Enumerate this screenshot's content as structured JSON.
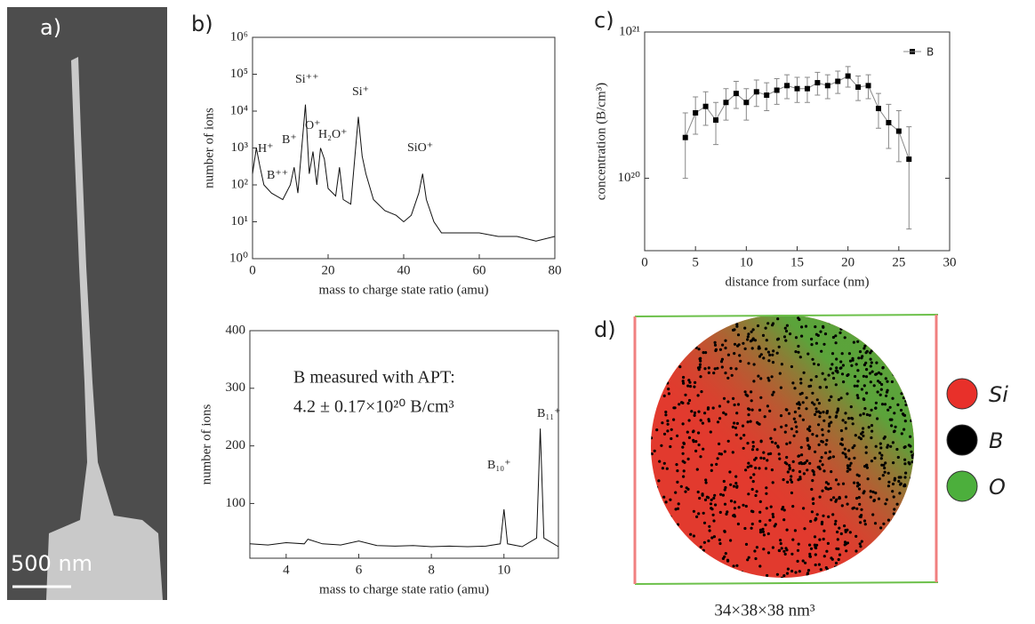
{
  "panel_labels": [
    "a)",
    "b)",
    "c)",
    "d)"
  ],
  "scale_bar": "500 nm",
  "atom_map": {
    "legend": [
      {
        "label": "Si",
        "color": "#e8302a"
      },
      {
        "label": "B",
        "color": "#000000"
      },
      {
        "label": "O",
        "color": "#4caf3c"
      }
    ],
    "caption": "34×38×38 nm³"
  },
  "chart_data": [
    {
      "type": "line",
      "ylog": true,
      "color": "#111111",
      "x_label": "mass to charge state ratio (amu)",
      "y_label": "number of ions",
      "annotations": [
        "H⁺",
        "B⁺",
        "B⁺⁺",
        "Si⁺⁺",
        "O⁺",
        "H₂O⁺",
        "Si⁺",
        "SiO⁺"
      ],
      "x": [
        0,
        1,
        2,
        3,
        5,
        8,
        10,
        11,
        12,
        14,
        15,
        16,
        17,
        18,
        19,
        20,
        22,
        23,
        24,
        26,
        28,
        29,
        30,
        32,
        35,
        38,
        40,
        42,
        44,
        45,
        46,
        48,
        50,
        55,
        60,
        65,
        70,
        75,
        80
      ],
      "values": [
        200,
        1000,
        300,
        100,
        60,
        40,
        100,
        300,
        60,
        15000,
        200,
        800,
        100,
        1000,
        500,
        80,
        50,
        300,
        40,
        30,
        7000,
        600,
        200,
        40,
        20,
        15,
        10,
        15,
        60,
        200,
        40,
        10,
        5,
        5,
        5,
        4,
        4,
        3,
        4
      ],
      "xlim": [
        0,
        80
      ],
      "xticks": [
        0,
        20,
        40,
        60,
        80
      ],
      "ylim": [
        1,
        1000000
      ],
      "yticks": [
        {
          "value": 1,
          "label": "10⁰"
        },
        {
          "value": 10,
          "label": "10¹"
        },
        {
          "value": 100,
          "label": "10²"
        },
        {
          "value": 1000,
          "label": "10³"
        },
        {
          "value": 10000,
          "label": "10⁴"
        },
        {
          "value": 100000,
          "label": "10⁵"
        },
        {
          "value": 1000000,
          "label": "10⁶"
        }
      ]
    },
    {
      "type": "line",
      "ylog": false,
      "color": "#111111",
      "x_label": "mass to charge state ratio (amu)",
      "y_label": "number of ions",
      "annotations": [
        "B measured  with APT:",
        "4.2 ± 0.17×10²⁰ B/cm³",
        "B₁₁⁺",
        "B₁₀⁺"
      ],
      "x": [
        3,
        3.5,
        4,
        4.5,
        4.6,
        5,
        5.5,
        6,
        6.5,
        7,
        7.5,
        8,
        8.5,
        9,
        9.5,
        9.9,
        10,
        10.1,
        10.5,
        10.9,
        11,
        11.1,
        11.5
      ],
      "values": [
        30,
        28,
        32,
        30,
        38,
        30,
        28,
        35,
        27,
        26,
        27,
        25,
        26,
        25,
        26,
        30,
        90,
        30,
        25,
        40,
        230,
        40,
        25
      ],
      "xlim": [
        3,
        11.5
      ],
      "xticks": [
        4,
        6,
        8,
        10
      ],
      "ylim": [
        5,
        400
      ],
      "yticks": [
        100,
        200,
        300,
        400
      ]
    },
    {
      "type": "scatter",
      "ylog": true,
      "x_label": "distance from surface (nm)",
      "y_label": "concentration (B/cm³)",
      "x": [
        4,
        5,
        6,
        7,
        8,
        9,
        10,
        11,
        12,
        13,
        14,
        15,
        16,
        17,
        18,
        19,
        20,
        21,
        22,
        23,
        24,
        25,
        26
      ],
      "series": [
        {
          "name": "B",
          "color": "#000000",
          "values": [
            1.9e+20,
            2.8e+20,
            3.1e+20,
            2.5e+20,
            3.3e+20,
            3.8e+20,
            3.3e+20,
            3.9e+20,
            3.7e+20,
            4e+20,
            4.3e+20,
            4.1e+20,
            4.1e+20,
            4.5e+20,
            4.3e+20,
            4.6e+20,
            5e+20,
            4.2e+20,
            4.3e+20,
            3e+20,
            2.4e+20,
            2.1e+20,
            1.35e+20
          ],
          "errors": [
            9e+19,
            8e+19,
            8e+19,
            8e+19,
            8e+19,
            8e+19,
            8e+19,
            8e+19,
            8e+19,
            8e+19,
            8e+19,
            8e+19,
            8e+19,
            8e+19,
            8e+19,
            8e+19,
            8e+19,
            8e+19,
            8e+19,
            8e+19,
            8e+19,
            8e+19,
            9e+19
          ]
        }
      ],
      "xlim": [
        0,
        30
      ],
      "xticks": [
        0,
        5,
        10,
        15,
        20,
        25,
        30
      ],
      "ylim": [
        3.2e+19,
        1e+21
      ],
      "yticks": [
        {
          "value": 1e+20,
          "label": "10²⁰"
        },
        {
          "value": 1e+21,
          "label": "10²¹"
        }
      ]
    }
  ]
}
